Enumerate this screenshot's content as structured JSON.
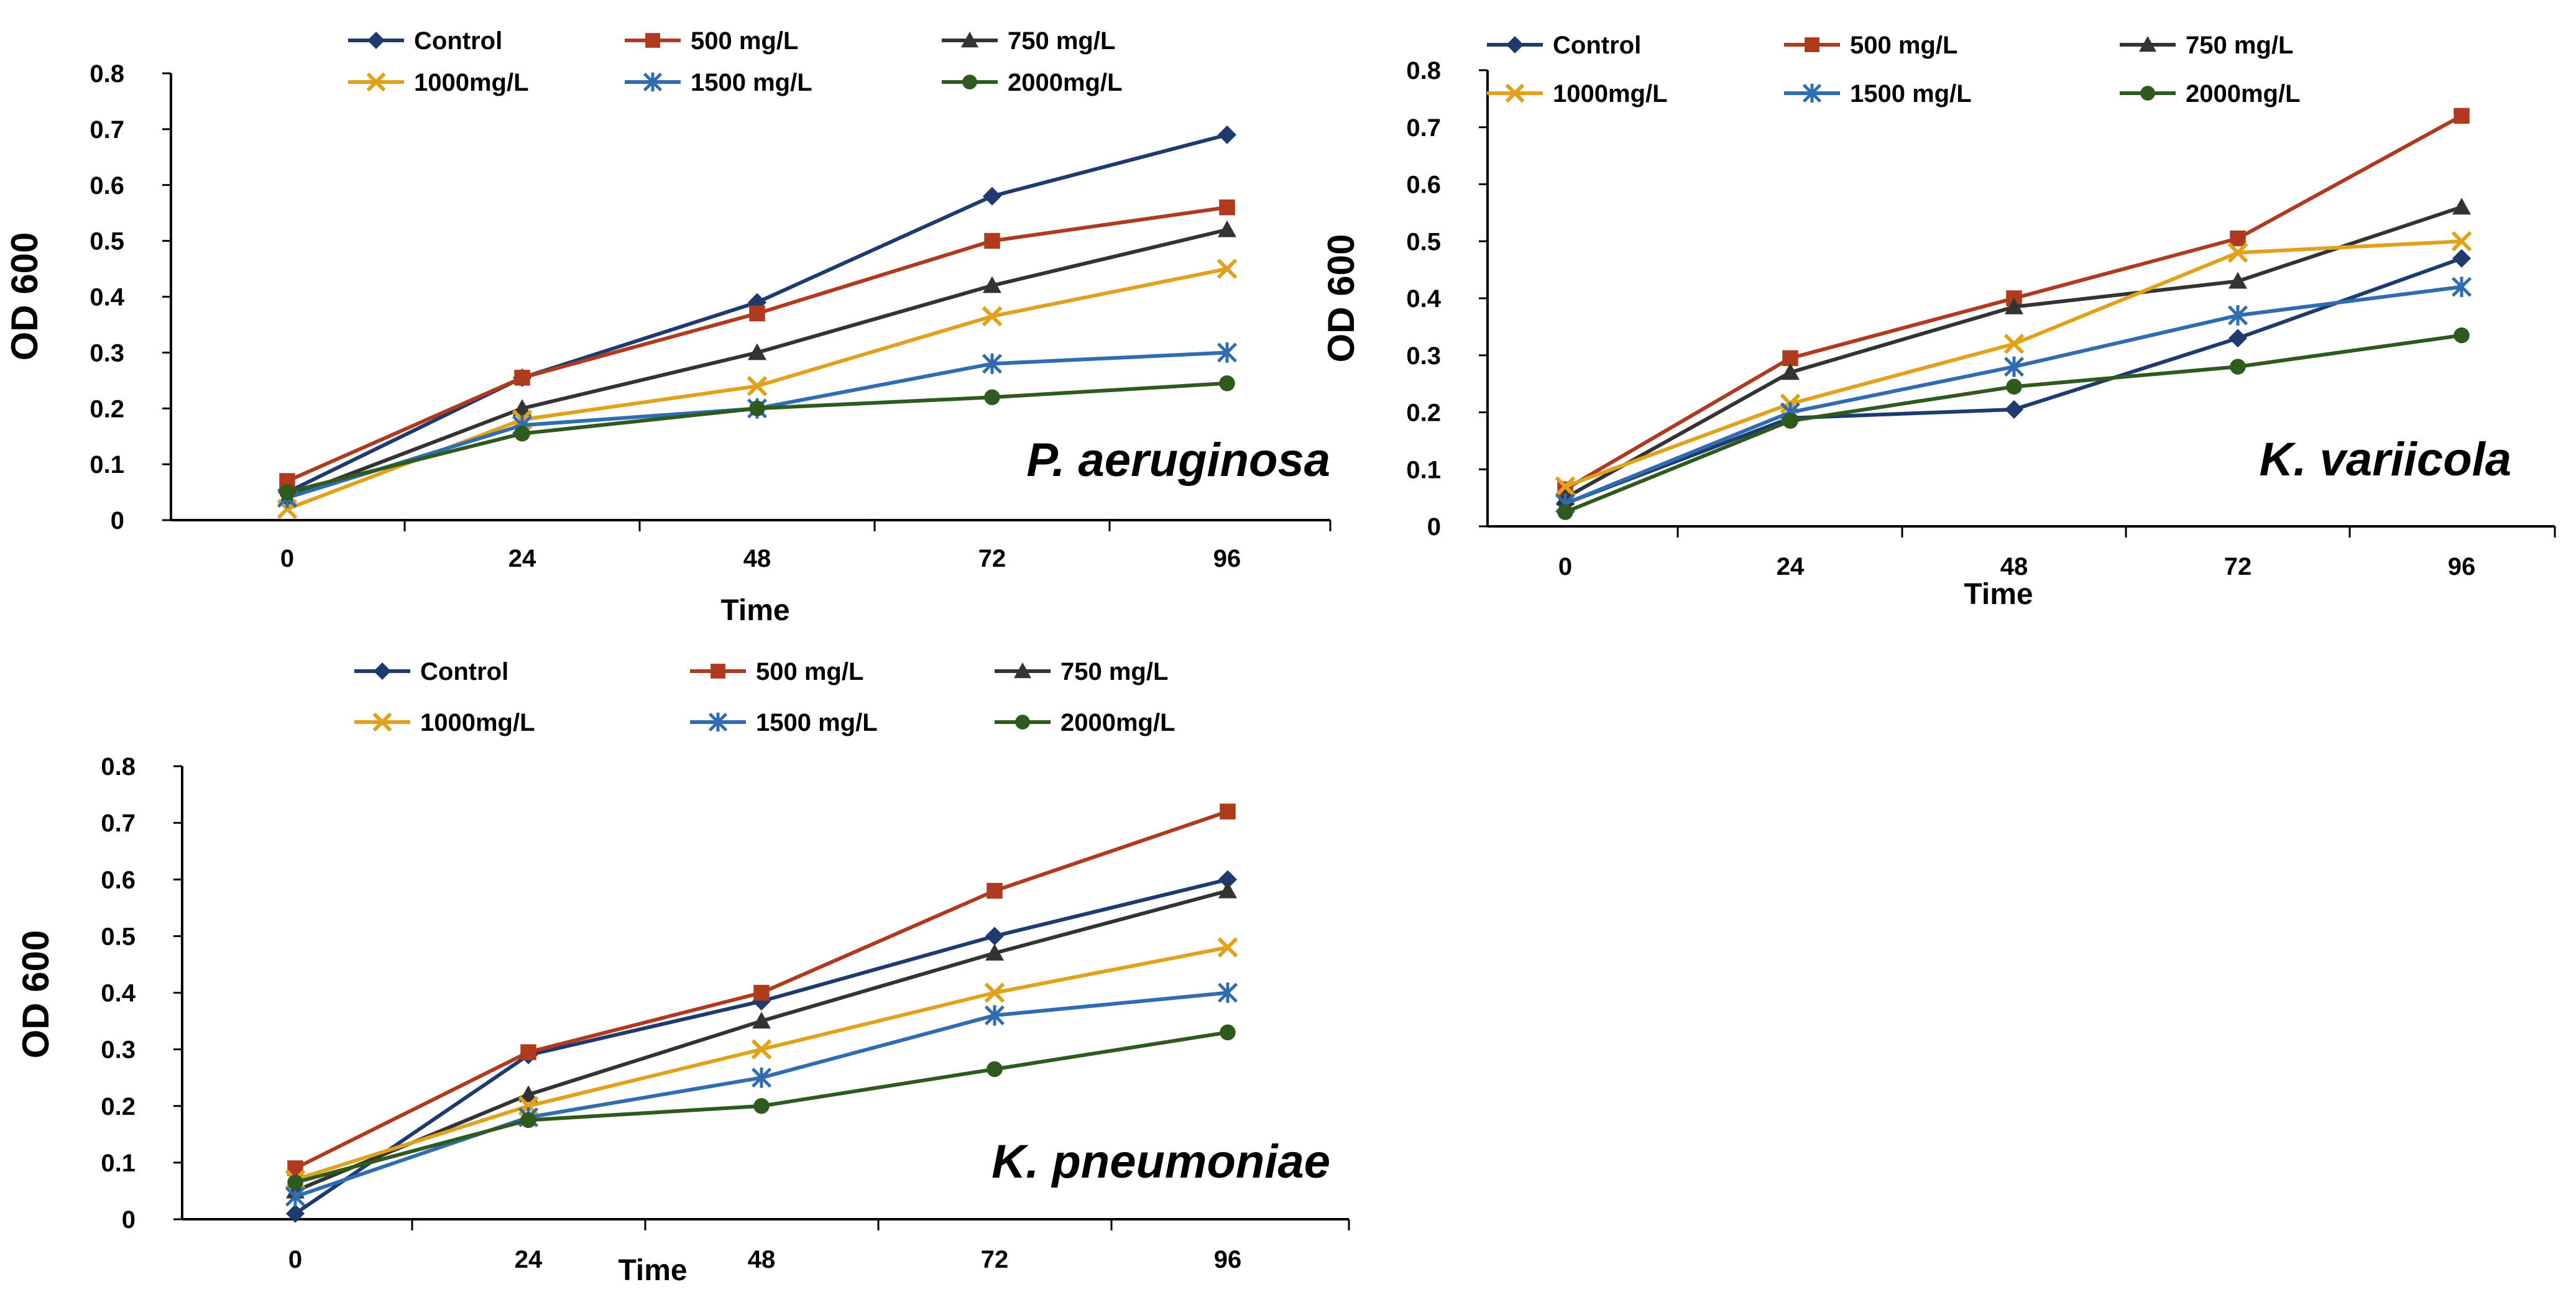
{
  "chart_data": [
    {
      "type": "line",
      "annotation": "P. aeruginosa",
      "xlabel": "Time",
      "ylabel": "OD 600",
      "categories": [
        "0",
        "24",
        "48",
        "72",
        "96"
      ],
      "ylim": [
        0,
        0.8
      ],
      "yticks": [
        "0",
        "0.1",
        "0.2",
        "0.3",
        "0.4",
        "0.5",
        "0.6",
        "0.7",
        "0.8"
      ],
      "legend": "top",
      "series": [
        {
          "name": "Control",
          "values": [
            0.05,
            0.255,
            0.39,
            0.58,
            0.69
          ]
        },
        {
          "name": "500 mg/L",
          "values": [
            0.07,
            0.255,
            0.37,
            0.5,
            0.56
          ]
        },
        {
          "name": "750 mg/L",
          "values": [
            0.04,
            0.2,
            0.3,
            0.42,
            0.52
          ]
        },
        {
          "name": "1000mg/L",
          "values": [
            0.02,
            0.18,
            0.24,
            0.365,
            0.45
          ]
        },
        {
          "name": "1500 mg/L",
          "values": [
            0.04,
            0.17,
            0.2,
            0.28,
            0.3
          ]
        },
        {
          "name": "2000mg/L",
          "values": [
            0.05,
            0.155,
            0.2,
            0.22,
            0.245
          ]
        }
      ]
    },
    {
      "type": "line",
      "annotation": "K. variicola",
      "xlabel": "Time",
      "ylabel": "OD 600",
      "categories": [
        "0",
        "24",
        "48",
        "72",
        "96"
      ],
      "ylim": [
        0,
        0.8
      ],
      "yticks": [
        "0",
        "0.1",
        "0.2",
        "0.3",
        "0.4",
        "0.5",
        "0.6",
        "0.7",
        "0.8"
      ],
      "legend": "top",
      "series": [
        {
          "name": "Control",
          "values": [
            0.04,
            0.19,
            0.205,
            0.33,
            0.47
          ]
        },
        {
          "name": "500 mg/L",
          "values": [
            0.065,
            0.295,
            0.4,
            0.505,
            0.72
          ]
        },
        {
          "name": "750 mg/L",
          "values": [
            0.05,
            0.27,
            0.385,
            0.43,
            0.56
          ]
        },
        {
          "name": "1000mg/L",
          "values": [
            0.07,
            0.215,
            0.32,
            0.48,
            0.5
          ]
        },
        {
          "name": "1500 mg/L",
          "values": [
            0.04,
            0.2,
            0.28,
            0.37,
            0.42
          ]
        },
        {
          "name": "2000mg/L",
          "values": [
            0.025,
            0.185,
            0.245,
            0.28,
            0.335
          ]
        }
      ]
    },
    {
      "type": "line",
      "annotation": "K. pneumoniae",
      "xlabel": "Time",
      "ylabel": "OD 600",
      "categories": [
        "0",
        "24",
        "48",
        "72",
        "96"
      ],
      "ylim": [
        0,
        0.8
      ],
      "yticks": [
        "0",
        "0.1",
        "0.2",
        "0.3",
        "0.4",
        "0.5",
        "0.6",
        "0.7",
        "0.8"
      ],
      "legend": "top",
      "series": [
        {
          "name": "Control",
          "values": [
            0.01,
            0.29,
            0.385,
            0.5,
            0.6
          ]
        },
        {
          "name": "500 mg/L",
          "values": [
            0.09,
            0.295,
            0.4,
            0.58,
            0.72
          ]
        },
        {
          "name": "750 mg/L",
          "values": [
            0.05,
            0.22,
            0.35,
            0.47,
            0.58
          ]
        },
        {
          "name": "1000mg/L",
          "values": [
            0.07,
            0.2,
            0.3,
            0.4,
            0.48
          ]
        },
        {
          "name": "1500 mg/L",
          "values": [
            0.04,
            0.18,
            0.25,
            0.36,
            0.4
          ]
        },
        {
          "name": "2000mg/L",
          "values": [
            0.065,
            0.175,
            0.2,
            0.265,
            0.33
          ]
        }
      ]
    }
  ],
  "styles": {
    "series_colors": [
      "#1F3A6E",
      "#B03A1E",
      "#333333",
      "#E0A21C",
      "#2F6DB0",
      "#2F5A1E"
    ],
    "series_markers": [
      "diamond",
      "square",
      "triangle",
      "x",
      "star",
      "circle"
    ],
    "axis_color": "#000000"
  }
}
